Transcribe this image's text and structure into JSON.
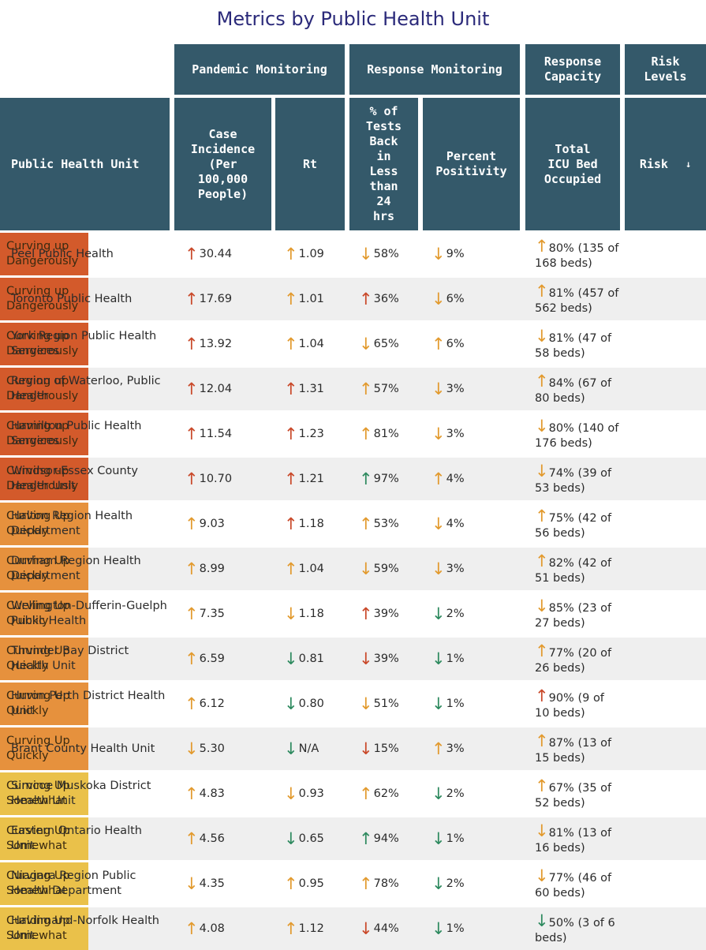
{
  "title": "Metrics by Public Health Unit",
  "colors": {
    "header_bg": "#34596a",
    "risk_dangerous": "#d35a2b",
    "risk_quickly": "#e6913d",
    "risk_somewhat": "#eac14a",
    "arrow_red": "#c9492a",
    "arrow_orange": "#e29a2e",
    "arrow_green": "#2e8a5f"
  },
  "group_headers": {
    "pandemic": "Pandemic Monitoring",
    "response_monitoring": "Response Monitoring",
    "response_capacity": "Response\nCapacity",
    "risk_levels": "Risk Levels"
  },
  "columns": {
    "unit": "Public Health Unit",
    "incidence": "Case\nIncidence\n(Per\n100,000\nPeople)",
    "rt": "Rt",
    "tests": "% of\nTests\nBack\nin\nLess\nthan\n24\nhrs",
    "positivity": "Percent\nPositivity",
    "icu": "Total\nICU Bed\nOccupied",
    "risk": "Risk",
    "risk_sort_icon": "↓"
  },
  "rows": [
    {
      "unit": "Peel Public Health",
      "inc": "30.44",
      "inc_dir": "up",
      "inc_color": "red",
      "rt": "1.09",
      "rt_dir": "up",
      "rt_color": "orange",
      "tests": "58%",
      "tests_dir": "down",
      "tests_color": "orange",
      "pos": "9%",
      "pos_dir": "down",
      "pos_color": "orange",
      "icu": "80% (135 of 168 beds)",
      "icu_dir": "up",
      "icu_color": "orange",
      "risk": "Curving up Dangerously",
      "risk_level": "dangerous"
    },
    {
      "unit": "Toronto Public Health",
      "inc": "17.69",
      "inc_dir": "up",
      "inc_color": "red",
      "rt": "1.01",
      "rt_dir": "up",
      "rt_color": "orange",
      "tests": "36%",
      "tests_dir": "up",
      "tests_color": "red",
      "pos": "6%",
      "pos_dir": "down",
      "pos_color": "orange",
      "icu": "81% (457 of 562 beds)",
      "icu_dir": "up",
      "icu_color": "orange",
      "risk": "Curving up Dangerously",
      "risk_level": "dangerous"
    },
    {
      "unit": "York Region Public Health Services",
      "inc": "13.92",
      "inc_dir": "up",
      "inc_color": "red",
      "rt": "1.04",
      "rt_dir": "up",
      "rt_color": "orange",
      "tests": "65%",
      "tests_dir": "down",
      "tests_color": "orange",
      "pos": "6%",
      "pos_dir": "up",
      "pos_color": "orange",
      "icu": "81% (47 of 58 beds)",
      "icu_dir": "down",
      "icu_color": "orange",
      "risk": "Curving up Dangerously",
      "risk_level": "dangerous"
    },
    {
      "unit": "Region of Waterloo, Public Health",
      "inc": "12.04",
      "inc_dir": "up",
      "inc_color": "red",
      "rt": "1.31",
      "rt_dir": "up",
      "rt_color": "red",
      "tests": "57%",
      "tests_dir": "up",
      "tests_color": "orange",
      "pos": "3%",
      "pos_dir": "down",
      "pos_color": "orange",
      "icu": "84% (67 of 80 beds)",
      "icu_dir": "up",
      "icu_color": "orange",
      "risk": "Curving up Dangerously",
      "risk_level": "dangerous"
    },
    {
      "unit": "Hamilton Public Health Services",
      "inc": "11.54",
      "inc_dir": "up",
      "inc_color": "red",
      "rt": "1.23",
      "rt_dir": "up",
      "rt_color": "red",
      "tests": "81%",
      "tests_dir": "up",
      "tests_color": "orange",
      "pos": "3%",
      "pos_dir": "down",
      "pos_color": "orange",
      "icu": "80% (140 of 176 beds)",
      "icu_dir": "down",
      "icu_color": "orange",
      "risk": "Curving up Dangerously",
      "risk_level": "dangerous"
    },
    {
      "unit": "Windsor-Essex County Health Unit",
      "inc": "10.70",
      "inc_dir": "up",
      "inc_color": "red",
      "rt": "1.21",
      "rt_dir": "up",
      "rt_color": "red",
      "tests": "97%",
      "tests_dir": "up",
      "tests_color": "green",
      "pos": "4%",
      "pos_dir": "up",
      "pos_color": "orange",
      "icu": "74% (39 of 53 beds)",
      "icu_dir": "down",
      "icu_color": "orange",
      "risk": "Curving up Dangerously",
      "risk_level": "dangerous"
    },
    {
      "unit": "Halton Region Health Department",
      "inc": "9.03",
      "inc_dir": "up",
      "inc_color": "orange",
      "rt": "1.18",
      "rt_dir": "up",
      "rt_color": "red",
      "tests": "53%",
      "tests_dir": "up",
      "tests_color": "orange",
      "pos": "4%",
      "pos_dir": "down",
      "pos_color": "orange",
      "icu": "75% (42 of 56 beds)",
      "icu_dir": "up",
      "icu_color": "orange",
      "risk": "Curving Up Quickly",
      "risk_level": "quickly"
    },
    {
      "unit": "Durham Region Health Department",
      "inc": "8.99",
      "inc_dir": "up",
      "inc_color": "orange",
      "rt": "1.04",
      "rt_dir": "up",
      "rt_color": "orange",
      "tests": "59%",
      "tests_dir": "down",
      "tests_color": "orange",
      "pos": "3%",
      "pos_dir": "down",
      "pos_color": "orange",
      "icu": "82% (42 of 51 beds)",
      "icu_dir": "up",
      "icu_color": "orange",
      "risk": "Curving Up Quickly",
      "risk_level": "quickly"
    },
    {
      "unit": "Wellington-Dufferin-Guelph Public Health",
      "inc": "7.35",
      "inc_dir": "up",
      "inc_color": "orange",
      "rt": "1.18",
      "rt_dir": "down",
      "rt_color": "orange",
      "tests": "39%",
      "tests_dir": "up",
      "tests_color": "red",
      "pos": "2%",
      "pos_dir": "down",
      "pos_color": "green",
      "icu": "85% (23 of 27 beds)",
      "icu_dir": "down",
      "icu_color": "orange",
      "risk": "Curving Up Quickly",
      "risk_level": "quickly"
    },
    {
      "unit": "Thunder Bay District Health Unit",
      "inc": "6.59",
      "inc_dir": "up",
      "inc_color": "orange",
      "rt": "0.81",
      "rt_dir": "down",
      "rt_color": "green",
      "tests": "39%",
      "tests_dir": "down",
      "tests_color": "red",
      "pos": "1%",
      "pos_dir": "down",
      "pos_color": "green",
      "icu": "77% (20 of 26 beds)",
      "icu_dir": "up",
      "icu_color": "orange",
      "risk": "Curving Up Quickly",
      "risk_level": "quickly"
    },
    {
      "unit": "Huron Perth District Health Unit",
      "inc": "6.12",
      "inc_dir": "up",
      "inc_color": "orange",
      "rt": "0.80",
      "rt_dir": "down",
      "rt_color": "green",
      "tests": "51%",
      "tests_dir": "down",
      "tests_color": "orange",
      "pos": "1%",
      "pos_dir": "down",
      "pos_color": "green",
      "icu": "90% (9 of 10 beds)",
      "icu_dir": "up",
      "icu_color": "red",
      "risk": "Curving Up Quickly",
      "risk_level": "quickly"
    },
    {
      "unit": "Brant County Health Unit",
      "inc": "5.30",
      "inc_dir": "down",
      "inc_color": "orange",
      "rt": "N/A",
      "rt_dir": "down",
      "rt_color": "green",
      "tests": "15%",
      "tests_dir": "down",
      "tests_color": "red",
      "pos": "3%",
      "pos_dir": "up",
      "pos_color": "orange",
      "icu": "87% (13 of 15 beds)",
      "icu_dir": "up",
      "icu_color": "orange",
      "risk": "Curving Up Quickly",
      "risk_level": "quickly"
    },
    {
      "unit": "Simcoe Muskoka District Health Unit",
      "inc": "4.83",
      "inc_dir": "up",
      "inc_color": "orange",
      "rt": "0.93",
      "rt_dir": "down",
      "rt_color": "orange",
      "tests": "62%",
      "tests_dir": "up",
      "tests_color": "orange",
      "pos": "2%",
      "pos_dir": "down",
      "pos_color": "green",
      "icu": "67% (35 of 52 beds)",
      "icu_dir": "up",
      "icu_color": "orange",
      "risk": "Curving Up Somewhat",
      "risk_level": "somewhat"
    },
    {
      "unit": "Eastern Ontario Health Unit",
      "inc": "4.56",
      "inc_dir": "up",
      "inc_color": "orange",
      "rt": "0.65",
      "rt_dir": "down",
      "rt_color": "green",
      "tests": "94%",
      "tests_dir": "up",
      "tests_color": "green",
      "pos": "1%",
      "pos_dir": "down",
      "pos_color": "green",
      "icu": "81% (13 of 16 beds)",
      "icu_dir": "down",
      "icu_color": "orange",
      "risk": "Curving Up Somewhat",
      "risk_level": "somewhat"
    },
    {
      "unit": "Niagara Region Public Health Department",
      "inc": "4.35",
      "inc_dir": "down",
      "inc_color": "orange",
      "rt": "0.95",
      "rt_dir": "up",
      "rt_color": "orange",
      "tests": "78%",
      "tests_dir": "up",
      "tests_color": "orange",
      "pos": "2%",
      "pos_dir": "down",
      "pos_color": "green",
      "icu": "77% (46 of 60 beds)",
      "icu_dir": "down",
      "icu_color": "orange",
      "risk": "Curving Up Somewhat",
      "risk_level": "somewhat"
    },
    {
      "unit": "Haldimand-Norfolk Health Unit",
      "inc": "4.08",
      "inc_dir": "up",
      "inc_color": "orange",
      "rt": "1.12",
      "rt_dir": "up",
      "rt_color": "orange",
      "tests": "44%",
      "tests_dir": "down",
      "tests_color": "red",
      "pos": "1%",
      "pos_dir": "down",
      "pos_color": "green",
      "icu": "50% (3 of 6 beds)",
      "icu_dir": "down",
      "icu_color": "green",
      "risk": "Curving Up Somewhat",
      "risk_level": "somewhat"
    }
  ]
}
